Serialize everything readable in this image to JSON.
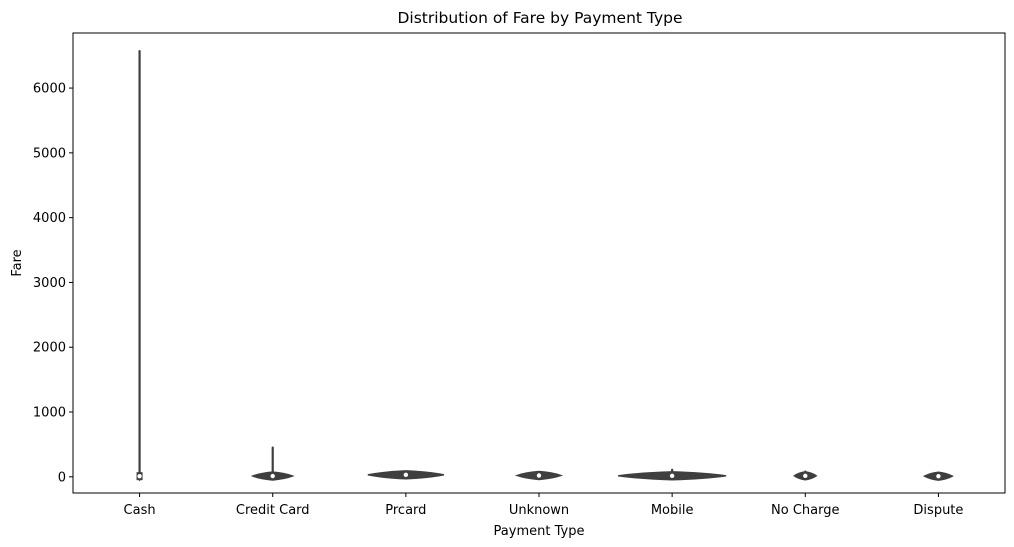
{
  "chart_data": {
    "type": "violin",
    "title": "Distribution of Fare by Payment Type",
    "xlabel": "Payment Type",
    "ylabel": "Fare",
    "categories": [
      "Cash",
      "Credit Card",
      "Prcard",
      "Unknown",
      "Mobile",
      "No Charge",
      "Dispute"
    ],
    "ylim": [
      -250,
      6850
    ],
    "yticks": [
      0,
      1000,
      2000,
      3000,
      4000,
      5000,
      6000
    ],
    "grid": false,
    "colors": {
      "violin_edge": "#3f3f3f",
      "violin_fill": "#3f3f3f",
      "median_point": "#ffffff"
    },
    "series": [
      {
        "category": "Cash",
        "min": 0,
        "max": 6570,
        "median": 10
      },
      {
        "category": "Credit Card",
        "min": -5,
        "max": 450,
        "median": 12
      },
      {
        "category": "Prcard",
        "min": 10,
        "max": 50,
        "median": 30
      },
      {
        "category": "Unknown",
        "min": -10,
        "max": 55,
        "median": 20
      },
      {
        "category": "Mobile",
        "min": -5,
        "max": 110,
        "median": 15
      },
      {
        "category": "No Charge",
        "min": -10,
        "max": 80,
        "median": 15
      },
      {
        "category": "Dispute",
        "min": -15,
        "max": 60,
        "median": 10
      }
    ]
  }
}
